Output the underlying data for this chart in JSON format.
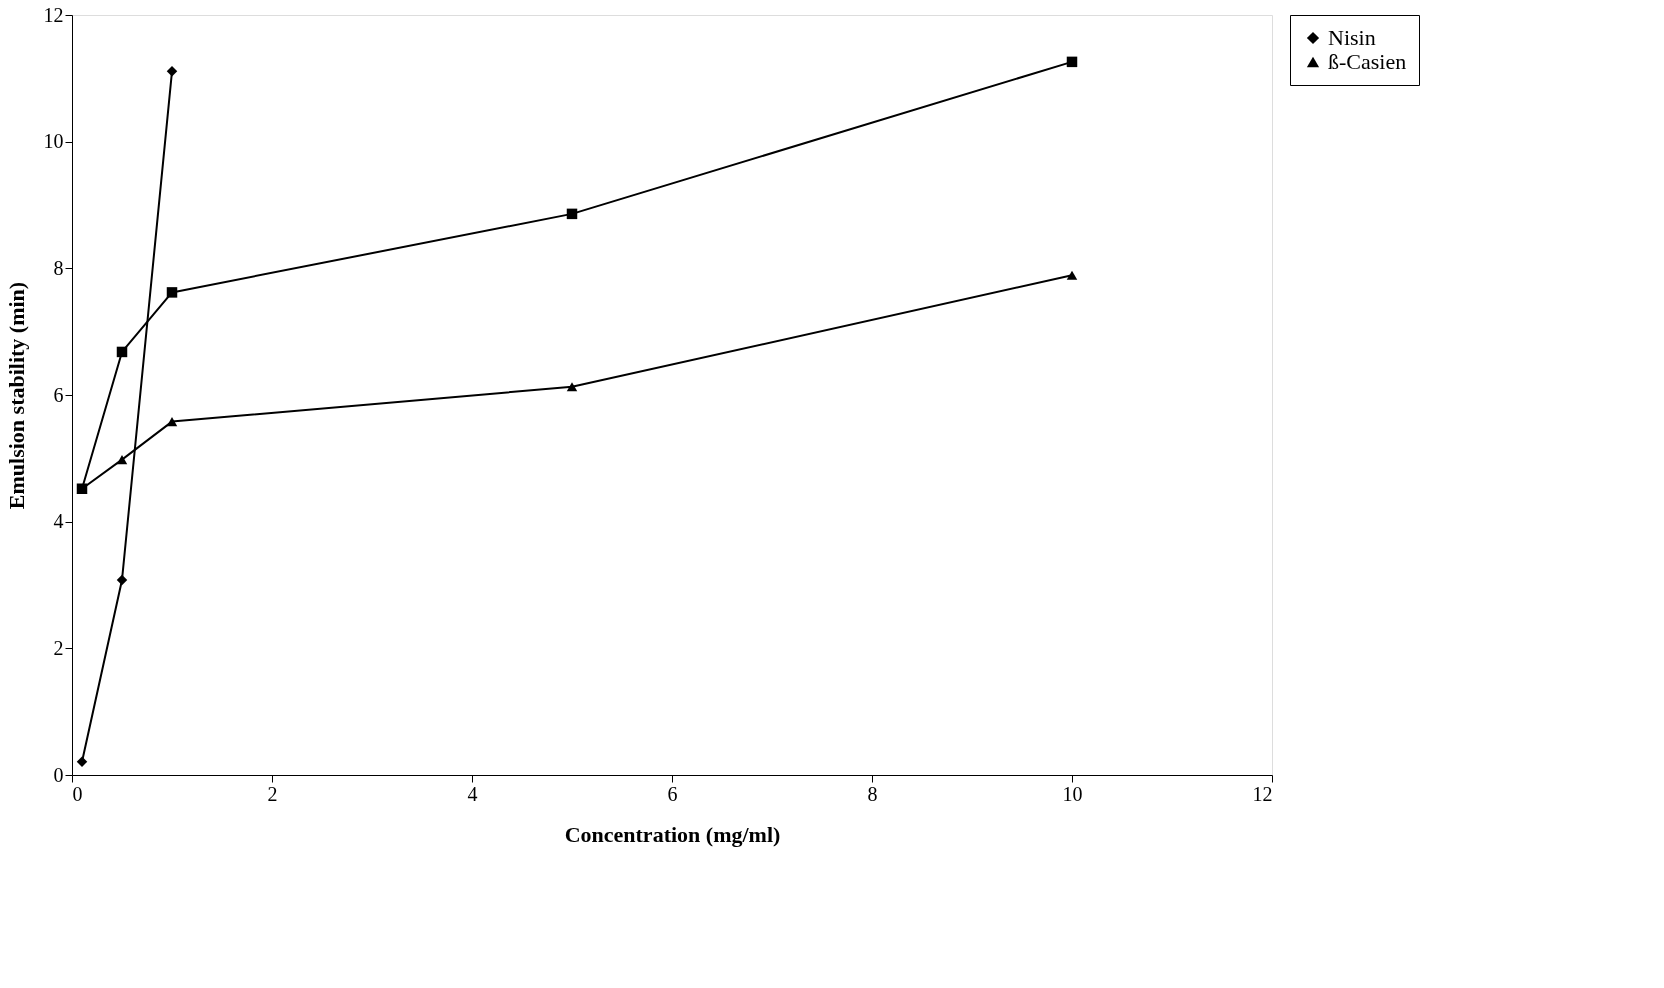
{
  "chart_data": {
    "type": "line",
    "xlabel": "Concentration (mg/ml)",
    "ylabel": "Emulsion stability (min)",
    "x": [
      0.1,
      0.5,
      1,
      5,
      10
    ],
    "series": [
      {
        "name": "Nisin",
        "color": "#000000",
        "marker": "diamond",
        "values": [
          0.21,
          3.08,
          11.11,
          null,
          null
        ]
      },
      {
        "color": "#000000",
        "marker": "square",
        "values": [
          4.52,
          6.68,
          7.62,
          8.86,
          11.26
        ]
      },
      {
        "name": "ß-Casien",
        "color": "#000000",
        "marker": "triangle",
        "values": [
          4.52,
          4.98,
          5.58,
          6.13,
          7.89
        ]
      }
    ],
    "xlim": [
      0,
      12
    ],
    "xticks": [
      0,
      2,
      4,
      6,
      8,
      10,
      12
    ],
    "ylim": [
      0,
      12
    ],
    "yticks": [
      0,
      2,
      4,
      6,
      8,
      10,
      12
    ],
    "grid": false,
    "legend": "right",
    "line_style": "solid"
  }
}
